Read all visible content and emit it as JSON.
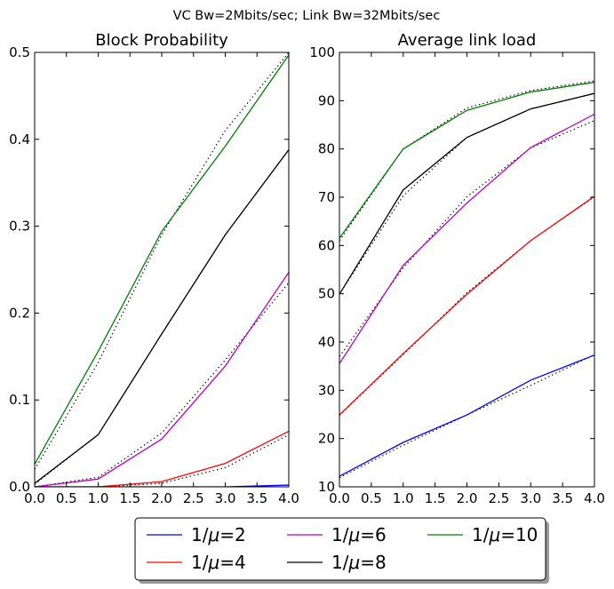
{
  "suptitle": "VC Bw=2Mbits/sec; Link Bw=32Mbits/sec",
  "chart_data": [
    {
      "type": "line",
      "title": "Block Probability",
      "xlabel": "",
      "ylabel": "",
      "xlim": [
        0.0,
        4.0
      ],
      "ylim": [
        0.0,
        0.5
      ],
      "xticks": [
        "0.0",
        "0.5",
        "1.0",
        "1.5",
        "2.0",
        "2.5",
        "3.0",
        "3.5",
        "4.0"
      ],
      "yticks": [
        "0.0",
        "0.1",
        "0.2",
        "0.3",
        "0.4",
        "0.5"
      ],
      "grid": false,
      "x": [
        0,
        1,
        2,
        3,
        4
      ],
      "series": [
        {
          "name": "1/μ=2",
          "color": "#0000ff",
          "values": [
            0.0,
            0.0,
            0.0,
            0.0,
            0.002
          ]
        },
        {
          "name": "1/μ=4",
          "color": "#ff0000",
          "values": [
            0.0,
            0.0,
            0.006,
            0.027,
            0.064
          ]
        },
        {
          "name": "1/μ=6",
          "color": "#bf00bf",
          "values": [
            0.0,
            0.009,
            0.055,
            0.139,
            0.247
          ]
        },
        {
          "name": "1/μ=8",
          "color": "#000000",
          "values": [
            0.004,
            0.06,
            0.176,
            0.29,
            0.388
          ]
        },
        {
          "name": "1/μ=10",
          "color": "#008000",
          "values": [
            0.026,
            0.156,
            0.294,
            0.392,
            0.497
          ]
        }
      ],
      "reference_series": [
        {
          "values": [
            0.0,
            0.0,
            0.0,
            0.0,
            0.0
          ]
        },
        {
          "values": [
            0.0,
            0.0,
            0.004,
            0.022,
            0.06
          ]
        },
        {
          "values": [
            0.0,
            0.011,
            0.062,
            0.146,
            0.235
          ]
        },
        {
          "values": [
            0.003,
            0.06,
            0.176,
            0.29,
            0.388
          ]
        },
        {
          "values": [
            0.02,
            0.143,
            0.29,
            0.41,
            0.5
          ]
        }
      ]
    },
    {
      "type": "line",
      "title": "Average link load",
      "xlabel": "",
      "ylabel": "",
      "xlim": [
        0.0,
        4.0
      ],
      "ylim": [
        10,
        100
      ],
      "xticks": [
        "0.0",
        "0.5",
        "1.0",
        "1.5",
        "2.0",
        "2.5",
        "3.0",
        "3.5",
        "4.0"
      ],
      "yticks": [
        "10",
        "20",
        "30",
        "40",
        "50",
        "60",
        "70",
        "80",
        "90",
        "100"
      ],
      "grid": false,
      "x": [
        0,
        1,
        2,
        3,
        4
      ],
      "series": [
        {
          "name": "1/μ=2",
          "color": "#0000ff",
          "values": [
            12.2,
            19.2,
            24.9,
            32.1,
            37.3
          ]
        },
        {
          "name": "1/μ=4",
          "color": "#ff0000",
          "values": [
            24.9,
            37.6,
            49.9,
            61.0,
            70.2
          ]
        },
        {
          "name": "1/μ=6",
          "color": "#bf00bf",
          "values": [
            35.5,
            55.9,
            68.8,
            80.3,
            87.2
          ]
        },
        {
          "name": "1/μ=8",
          "color": "#000000",
          "values": [
            49.9,
            71.5,
            82.4,
            88.3,
            91.5
          ]
        },
        {
          "name": "1/μ=10",
          "color": "#008000",
          "values": [
            61.5,
            80.0,
            88.0,
            91.8,
            93.8
          ]
        }
      ],
      "reference_series": [
        {
          "values": [
            11.9,
            18.6,
            24.9,
            31.0,
            37.4
          ]
        },
        {
          "values": [
            24.8,
            37.4,
            50.2,
            61.0,
            70.1
          ]
        },
        {
          "values": [
            37.0,
            55.4,
            70.1,
            80.2,
            85.9
          ]
        },
        {
          "values": [
            49.9,
            70.3,
            82.4,
            88.3,
            91.5
          ]
        },
        {
          "values": [
            61.0,
            80.0,
            88.5,
            92.1,
            94.1
          ]
        }
      ]
    }
  ],
  "legend": {
    "placement": "bottom-center",
    "entries": [
      {
        "label": "1/μ=2",
        "color": "#0000ff"
      },
      {
        "label": "1/μ=4",
        "color": "#ff0000"
      },
      {
        "label": "1/μ=6",
        "color": "#bf00bf"
      },
      {
        "label": "1/μ=8",
        "color": "#000000"
      },
      {
        "label": "1/μ=10",
        "color": "#008000"
      }
    ]
  }
}
